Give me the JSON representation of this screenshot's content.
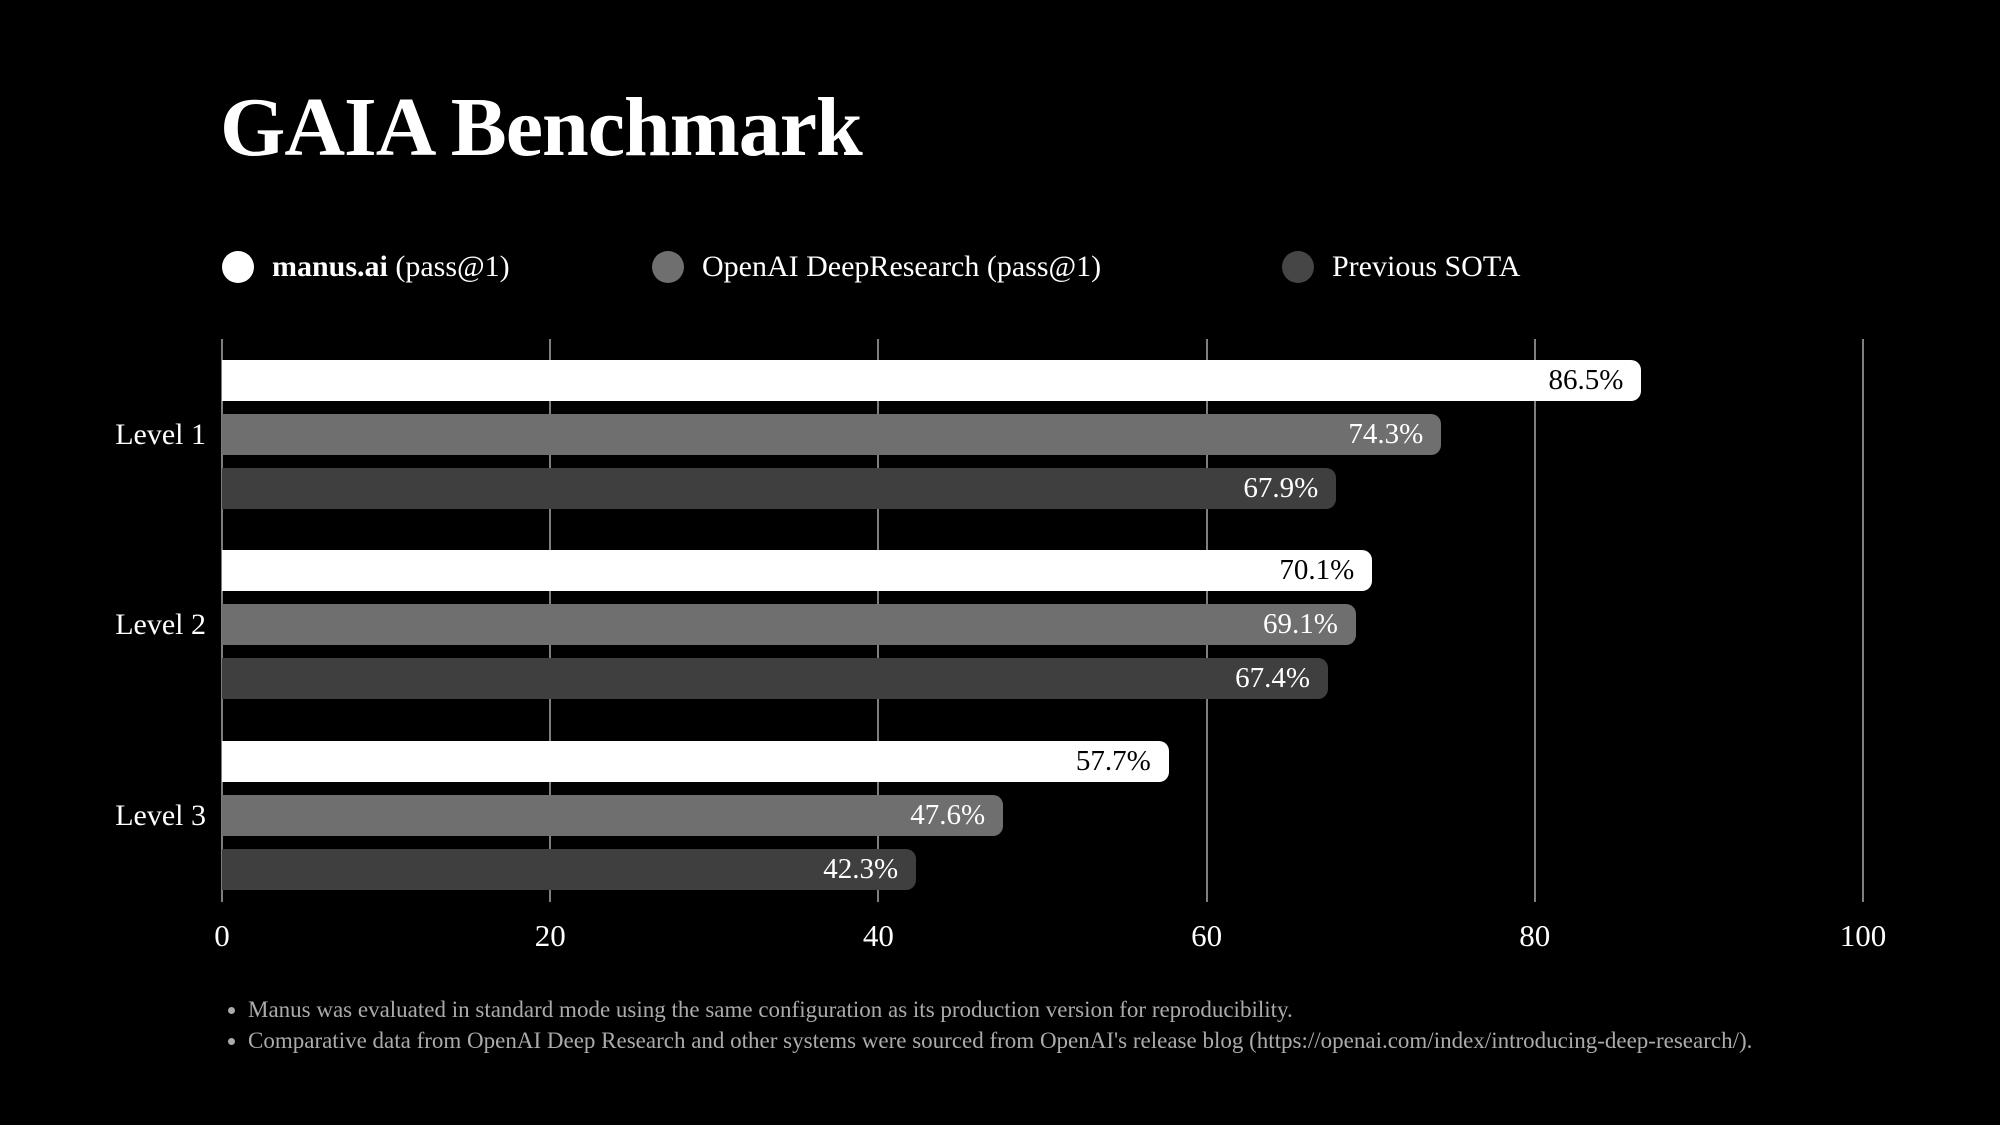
{
  "title": "GAIA Benchmark",
  "colors": {
    "background": "#000000",
    "grid": "#7e7e7e",
    "tick_label": "#ffffff",
    "category_label": "#ffffff",
    "note_text": "#ababab"
  },
  "legend": {
    "position": "top",
    "items": [
      {
        "strong": "manus.ai",
        "rest": " (pass@1)",
        "color": "#ffffff"
      },
      {
        "strong": "",
        "rest": "OpenAI DeepResearch (pass@1)",
        "color": "#6f6f6f"
      },
      {
        "strong": "",
        "rest": "Previous SOTA",
        "color": "#464646"
      }
    ]
  },
  "chart_data": {
    "type": "bar",
    "orientation": "horizontal",
    "title": "GAIA Benchmark",
    "categories": [
      "Level 1",
      "Level 2",
      "Level 3"
    ],
    "series": [
      {
        "name": "manus.ai (pass@1)",
        "color": "#ffffff",
        "label_color": "#000000",
        "values": [
          86.5,
          70.1,
          57.7
        ]
      },
      {
        "name": "OpenAI DeepResearch (pass@1)",
        "color": "#6f6f6f",
        "label_color": "#ffffff",
        "values": [
          74.3,
          69.1,
          47.6
        ]
      },
      {
        "name": "Previous SOTA",
        "color": "#3f3f3f",
        "label_color": "#ffffff",
        "values": [
          67.9,
          67.4,
          42.3
        ]
      }
    ],
    "value_suffix": "%",
    "value_decimals": 1,
    "xlabel": "",
    "ylabel": "",
    "xlim": [
      0,
      100
    ],
    "xticks": [
      0,
      20,
      40,
      60,
      80,
      100
    ],
    "grid": true,
    "legend_position": "top"
  },
  "footnotes": [
    "Manus was evaluated in standard mode using the same configuration as its production version for reproducibility.",
    "Comparative data from OpenAI Deep Research and other systems were sourced from OpenAI's release blog (https://openai.com/index/introducing-deep-research/)."
  ]
}
